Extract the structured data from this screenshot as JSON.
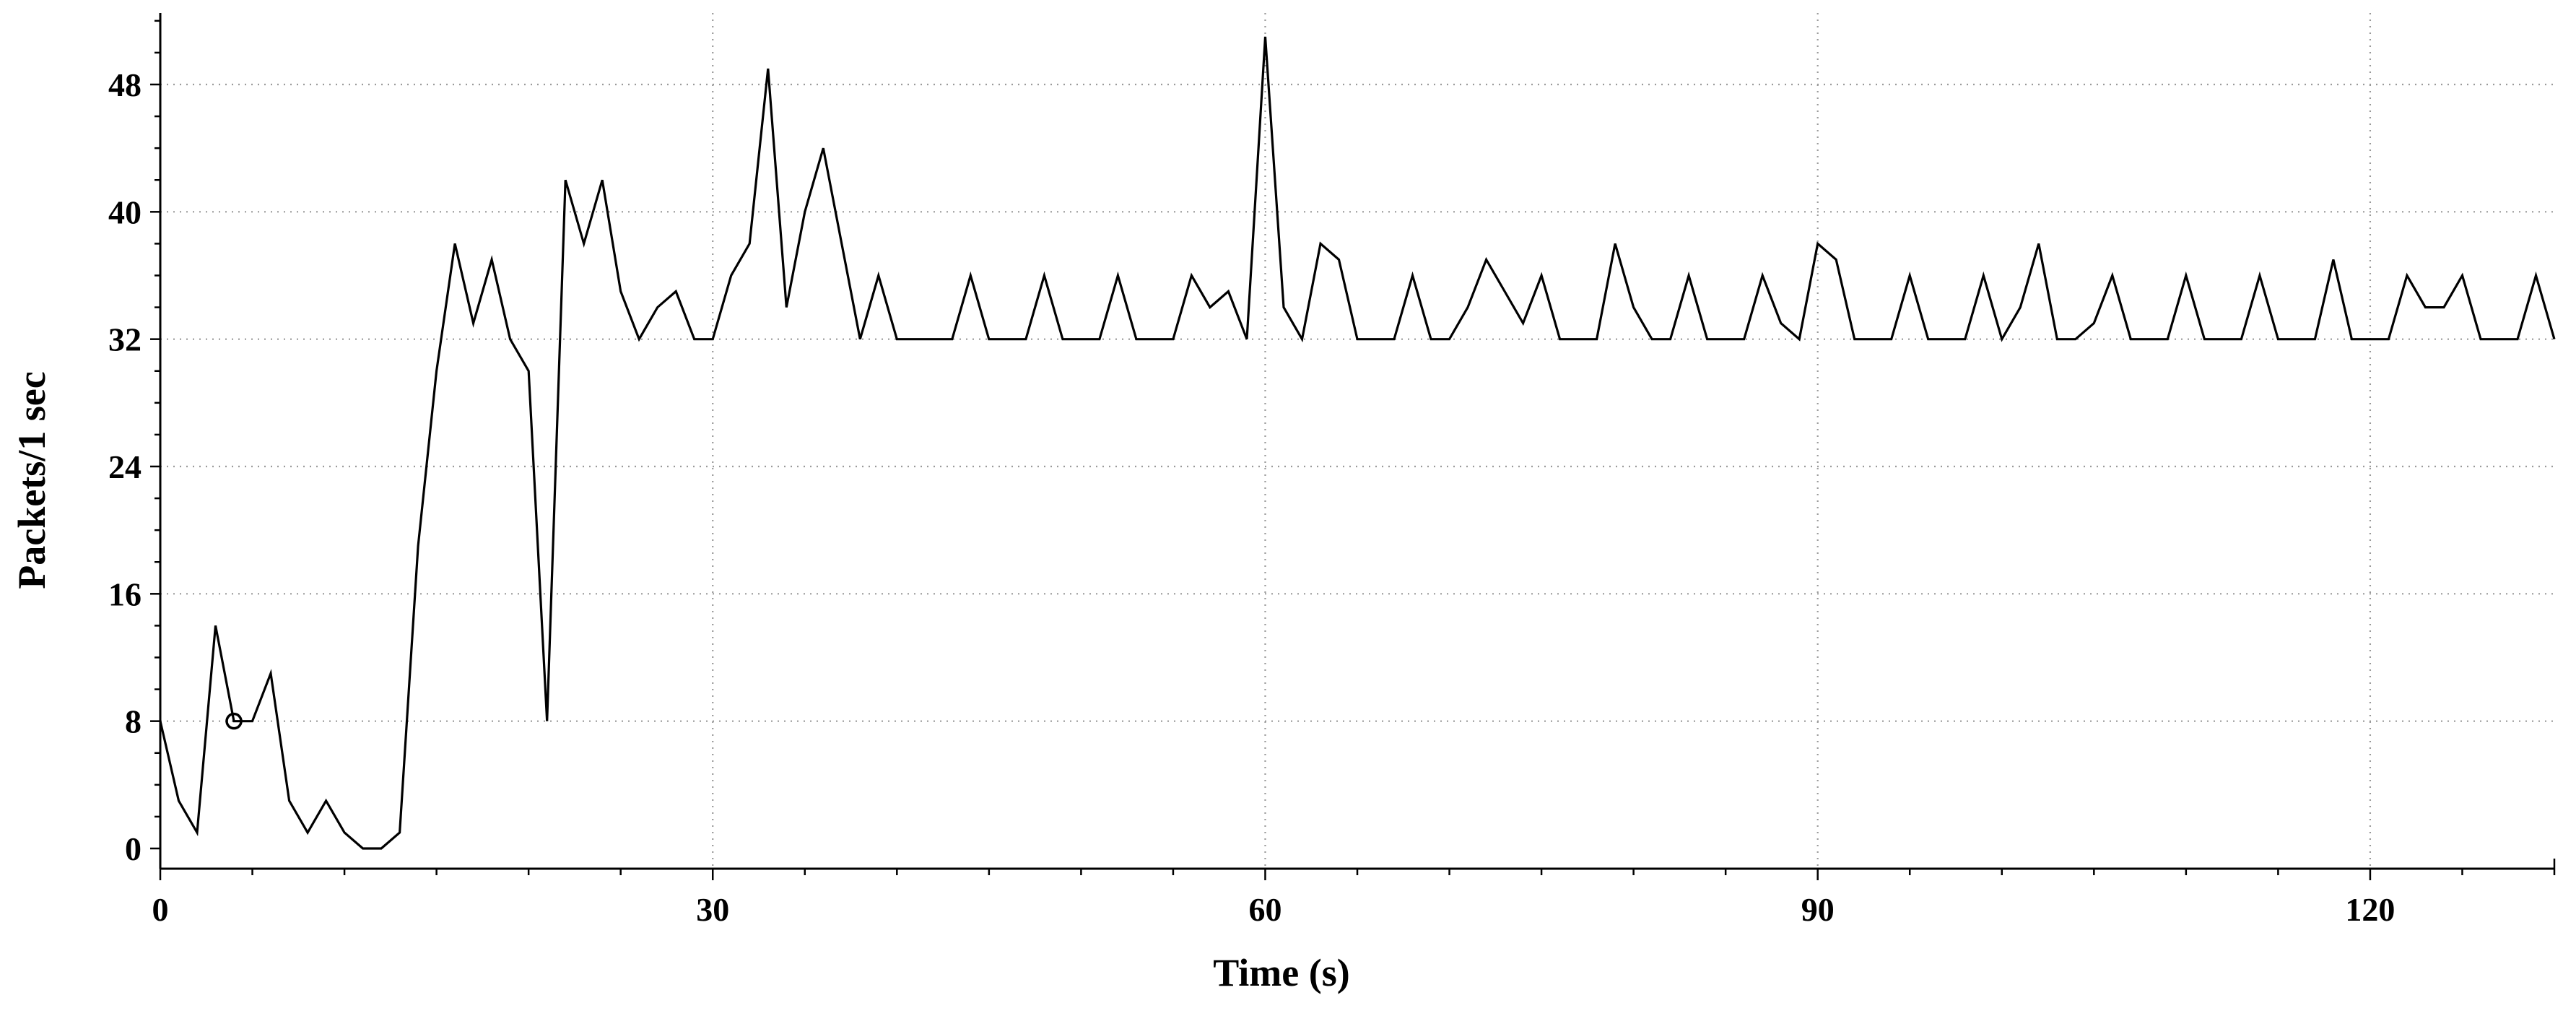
{
  "chart_data": {
    "type": "line",
    "xlabel": "Time (s)",
    "ylabel": "Packets/1 sec",
    "xlim": [
      0,
      130
    ],
    "ylim": [
      0,
      52
    ],
    "xticks": [
      0,
      30,
      60,
      90,
      120
    ],
    "yticks": [
      0,
      8,
      16,
      24,
      32,
      40,
      48
    ],
    "grid": true,
    "series": [
      {
        "x": [
          0,
          1,
          2,
          3,
          4,
          5,
          6,
          7,
          8,
          9,
          10,
          11,
          12,
          13,
          14,
          15,
          16,
          17,
          18,
          19,
          20,
          21,
          22,
          23,
          24,
          25,
          26,
          27,
          28,
          29,
          30,
          31,
          32,
          33,
          34,
          35,
          36,
          37,
          38,
          39,
          40,
          41,
          42,
          43,
          44,
          45,
          46,
          47,
          48,
          49,
          50,
          51,
          52,
          53,
          54,
          55,
          56,
          57,
          58,
          59,
          60,
          61,
          62,
          63,
          64,
          65,
          66,
          67,
          68,
          69,
          70,
          71,
          72,
          73,
          74,
          75,
          76,
          77,
          78,
          79,
          80,
          81,
          82,
          83,
          84,
          85,
          86,
          87,
          88,
          89,
          90,
          91,
          92,
          93,
          94,
          95,
          96,
          97,
          98,
          99,
          100,
          101,
          102,
          103,
          104,
          105,
          106,
          107,
          108,
          109,
          110,
          111,
          112,
          113,
          114,
          115,
          116,
          117,
          118,
          119,
          120,
          121,
          122,
          123,
          124,
          125,
          126,
          127,
          128,
          129,
          130
        ],
        "values": [
          8,
          3,
          1,
          14,
          8,
          8,
          11,
          3,
          1,
          3,
          1,
          0,
          0,
          1,
          19,
          30,
          38,
          33,
          37,
          32,
          30,
          8,
          42,
          38,
          42,
          35,
          32,
          34,
          35,
          32,
          32,
          36,
          38,
          49,
          34,
          40,
          44,
          38,
          32,
          36,
          32,
          32,
          32,
          32,
          36,
          32,
          32,
          32,
          36,
          32,
          32,
          32,
          36,
          32,
          32,
          32,
          36,
          34,
          35,
          32,
          51,
          34,
          32,
          38,
          37,
          32,
          32,
          32,
          36,
          32,
          32,
          34,
          37,
          35,
          33,
          36,
          32,
          32,
          32,
          38,
          34,
          32,
          32,
          36,
          32,
          32,
          32,
          36,
          33,
          32,
          38,
          37,
          32,
          32,
          32,
          36,
          32,
          32,
          32,
          36,
          32,
          34,
          38,
          32,
          32,
          33,
          36,
          32,
          32,
          32,
          36,
          32,
          32,
          32,
          36,
          32,
          32,
          32,
          37,
          32,
          32,
          32,
          36,
          34,
          34,
          36,
          32,
          32,
          32,
          36,
          32
        ]
      }
    ],
    "marker": {
      "x": 4,
      "y": 8
    }
  }
}
